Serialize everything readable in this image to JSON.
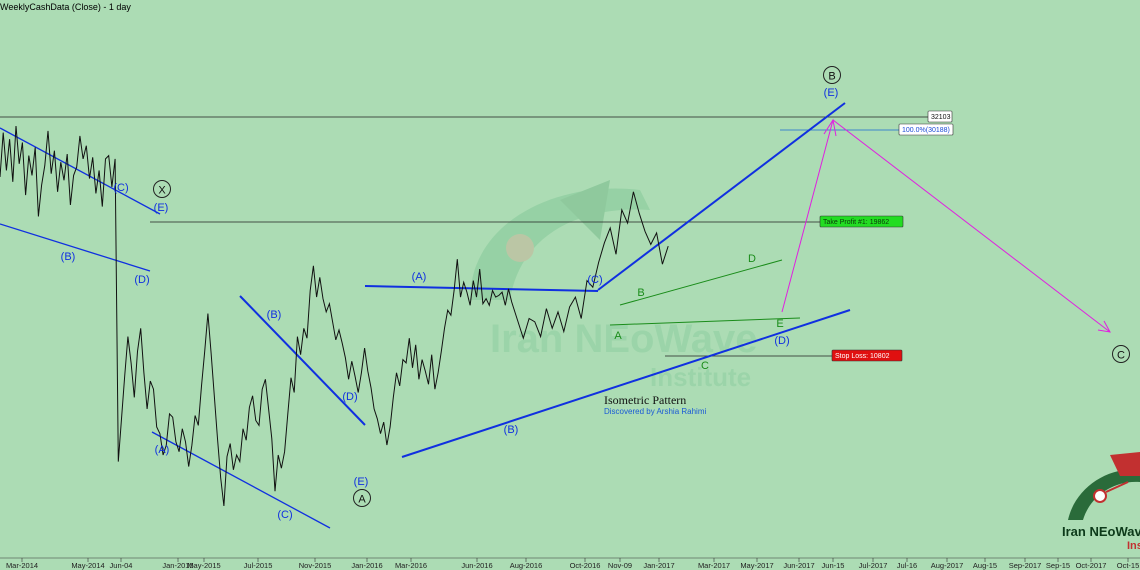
{
  "title": "WeeklyCashData (Close) - 1 day",
  "chart_data": {
    "type": "line",
    "series": [
      {
        "values": [
          21500,
          24200,
          21900,
          23800,
          21200,
          24600,
          22300,
          23600,
          20400,
          22800,
          21600,
          23300,
          19100,
          21000,
          22200,
          24300,
          21700,
          23100,
          20600,
          22400,
          21300,
          22900,
          19800,
          21600,
          22100,
          24000,
          22600,
          23400,
          21400,
          22700,
          20500,
          21900,
          19700,
          22600,
          22800,
          20900,
          22600,
          4200,
          6800,
          9400,
          11800,
          10200,
          8100,
          10900,
          12300,
          9600,
          7400,
          9100,
          8600,
          6300,
          5900,
          4600,
          5200,
          7100,
          6900,
          5400,
          4800,
          6200,
          5400,
          3900,
          5200,
          7000,
          6400,
          8800,
          10900,
          13200,
          10800,
          8200,
          5600,
          3200,
          1500,
          4500,
          5300,
          3700,
          4600,
          4200,
          6200,
          5500,
          7500,
          8200,
          6700,
          6400,
          8600,
          9200,
          7400,
          5600,
          2400,
          4600,
          3800,
          4800,
          7100,
          9300,
          8400,
          11800,
          10700,
          12300,
          11700,
          14600,
          16100,
          14200,
          15400,
          14100,
          13300,
          13800,
          12700,
          11600,
          12200,
          11400,
          10500,
          9200,
          10300,
          9400,
          8400,
          9600,
          11100,
          9700,
          8700,
          7400,
          6800,
          5900,
          6600,
          5200,
          6300,
          8100,
          9600,
          8800,
          10400,
          10200,
          11700,
          9900,
          11300,
          9200,
          10400,
          9700,
          8900,
          10700,
          8600,
          9600,
          10900,
          12300,
          13400,
          13100,
          14600,
          16500,
          14200,
          15100,
          14500,
          13700,
          15200,
          14200,
          15900,
          13800,
          14100,
          13700,
          14600,
          14200,
          14300,
          14500,
          13700,
          14700,
          13900,
          12800,
          11700,
          12900,
          12700,
          11800,
          13500,
          12300,
          13300,
          12100,
          13600,
          14200,
          12900,
          15200,
          14800,
          16300,
          17500,
          18400,
          16800,
          19500,
          18700,
          20600,
          19300,
          18200,
          17400,
          18100,
          16200,
          17300
        ]
      }
    ],
    "x_ticks": [
      "Mar-2014",
      "May-2014",
      "Jun-04",
      "Jan-2015",
      "May-2015",
      "Jul-2015",
      "Nov-2015",
      "Jan-2016",
      "Mar-2016",
      "Jun-2016",
      "Aug-2016",
      "Oct-2016",
      "Nov-09",
      "Jan-2017",
      "Mar-2017",
      "May-2017",
      "Jun-2017",
      "Jun-15",
      "Jul-2017",
      "Jul-16",
      "Aug-2017",
      "Aug-15",
      "Sep-2017",
      "Sep-15",
      "Oct-2017",
      "Oct-15"
    ],
    "price_tags": {
      "level": "32103",
      "fib": "100.0%(30188)",
      "take_profit": "Take Profit #1: 19862",
      "stop_loss": "Stop Loss: 10802"
    },
    "wave_labels": {
      "blue": [
        "(C)",
        "(B)",
        "(D)",
        "(E)",
        "(A)",
        "(B)",
        "(C)",
        "(D)",
        "(E)",
        "(A)",
        "(B)",
        "(C)",
        "(D)",
        "(E)"
      ],
      "green": [
        "B",
        "A",
        "C",
        "D",
        "E"
      ],
      "circled": [
        "X",
        "A",
        "B",
        "C"
      ]
    },
    "note": {
      "title": "Isometric Pattern",
      "subtitle": "Discovered by Arshia Rahimi"
    },
    "watermark": {
      "line1": "Iran NEoWave",
      "line2": "Institute"
    },
    "logo": {
      "line1": "Iran NEoWave",
      "line2": "Ins"
    },
    "colors": {
      "background": "#acdcb4",
      "price_line": "#111111",
      "channel_blue": "#1030e0",
      "triangle_green": "#1a8c1a",
      "projection_magenta": "#e020e0",
      "take_profit_bg": "#22dd22",
      "stop_loss_bg": "#e01010"
    }
  }
}
